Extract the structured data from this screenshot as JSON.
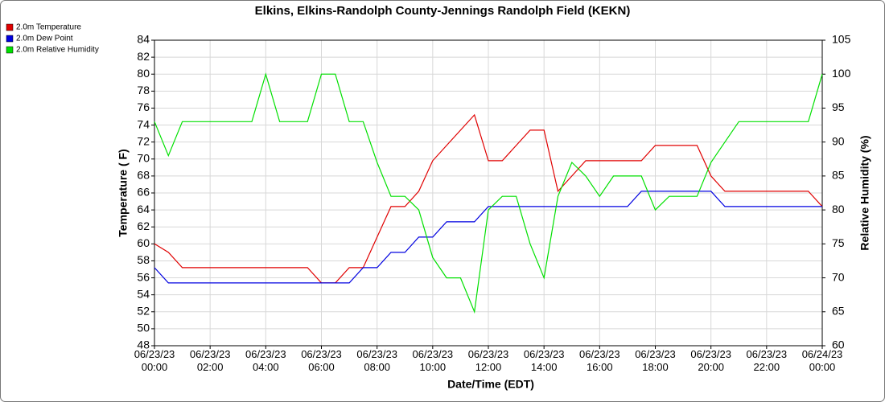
{
  "chart_data": {
    "type": "line",
    "title": "Elkins, Elkins-Randolph County-Jennings Randolph Field (KEKN)",
    "x_label": "Date/Time (EDT)",
    "y_label": "Temperature ( F)",
    "y2_label": "Relative Humidity (%)",
    "x": [
      "06/23/23 00:00",
      "06/23/23 00:30",
      "06/23/23 01:00",
      "06/23/23 01:30",
      "06/23/23 02:00",
      "06/23/23 02:30",
      "06/23/23 03:00",
      "06/23/23 03:30",
      "06/23/23 04:00",
      "06/23/23 04:30",
      "06/23/23 05:00",
      "06/23/23 05:30",
      "06/23/23 06:00",
      "06/23/23 06:30",
      "06/23/23 07:00",
      "06/23/23 07:30",
      "06/23/23 08:00",
      "06/23/23 08:30",
      "06/23/23 09:00",
      "06/23/23 09:30",
      "06/23/23 10:00",
      "06/23/23 10:30",
      "06/23/23 11:00",
      "06/23/23 11:30",
      "06/23/23 12:00",
      "06/23/23 12:30",
      "06/23/23 13:00",
      "06/23/23 13:30",
      "06/23/23 14:00",
      "06/23/23 14:30",
      "06/23/23 15:00",
      "06/23/23 15:30",
      "06/23/23 16:00",
      "06/23/23 16:30",
      "06/23/23 17:00",
      "06/23/23 17:30",
      "06/23/23 18:00",
      "06/23/23 18:30",
      "06/23/23 19:00",
      "06/23/23 19:30",
      "06/23/23 20:00",
      "06/23/23 20:30",
      "06/23/23 21:00",
      "06/23/23 21:30",
      "06/23/23 22:00",
      "06/23/23 22:30",
      "06/23/23 23:00",
      "06/23/23 23:30",
      "06/24/23 00:00"
    ],
    "series": [
      {
        "name": "2.0m Temperature",
        "color": "#e00000",
        "values": [
          60,
          59,
          57.2,
          57.2,
          57.2,
          57.2,
          57.2,
          57.2,
          57.2,
          57.2,
          57.2,
          57.2,
          55.4,
          55.4,
          57.2,
          57.2,
          60.8,
          64.4,
          64.4,
          66.2,
          69.8,
          71.6,
          73.4,
          75.2,
          69.8,
          69.8,
          71.6,
          73.4,
          73.4,
          66.2,
          68,
          69.8,
          69.8,
          69.8,
          69.8,
          69.8,
          71.6,
          71.6,
          71.6,
          71.6,
          68,
          66.2,
          66.2,
          66.2,
          66.2,
          66.2,
          66.2,
          66.2,
          64.4
        ]
      },
      {
        "name": "2.0m Dew Point",
        "color": "#0000e0",
        "values": [
          57.2,
          55.4,
          55.4,
          55.4,
          55.4,
          55.4,
          55.4,
          55.4,
          55.4,
          55.4,
          55.4,
          55.4,
          55.4,
          55.4,
          55.4,
          57.2,
          57.2,
          59,
          59,
          60.8,
          60.8,
          62.6,
          62.6,
          62.6,
          64.4,
          64.4,
          64.4,
          64.4,
          64.4,
          64.4,
          64.4,
          64.4,
          64.4,
          64.4,
          64.4,
          66.2,
          66.2,
          66.2,
          66.2,
          66.2,
          66.2,
          64.4,
          64.4,
          64.4,
          64.4,
          64.4,
          64.4,
          64.4,
          64.4
        ]
      },
      {
        "name": "2.0m Relative Humidity",
        "color": "#00e000",
        "axis": "y2",
        "values": [
          93,
          88,
          93,
          93,
          93,
          93,
          93,
          93,
          100,
          93,
          93,
          93,
          100,
          100,
          93,
          93,
          87,
          82,
          82,
          80,
          73,
          70,
          70,
          65,
          80,
          82,
          82,
          75,
          70,
          82,
          87,
          85,
          82,
          85,
          85,
          85,
          80,
          82,
          82,
          82,
          87,
          90,
          93,
          93,
          93,
          93,
          93,
          93,
          100
        ]
      }
    ],
    "xlim": [
      "06/23/23 00:00",
      "06/24/23 00:00"
    ],
    "xticks": [
      "06/23/23 00:00",
      "06/23/23 02:00",
      "06/23/23 04:00",
      "06/23/23 06:00",
      "06/23/23 08:00",
      "06/23/23 10:00",
      "06/23/23 12:00",
      "06/23/23 14:00",
      "06/23/23 16:00",
      "06/23/23 18:00",
      "06/23/23 20:00",
      "06/23/23 22:00",
      "06/24/23 00:00"
    ],
    "ylim": [
      48,
      84
    ],
    "yticks": [
      48,
      50,
      52,
      54,
      56,
      58,
      60,
      62,
      64,
      66,
      68,
      70,
      72,
      74,
      76,
      78,
      80,
      82,
      84
    ],
    "y2lim": [
      60,
      105
    ],
    "y2ticks": [
      60,
      65,
      70,
      75,
      80,
      85,
      90,
      95,
      100,
      105
    ],
    "grid": true,
    "legend": "top-left"
  }
}
